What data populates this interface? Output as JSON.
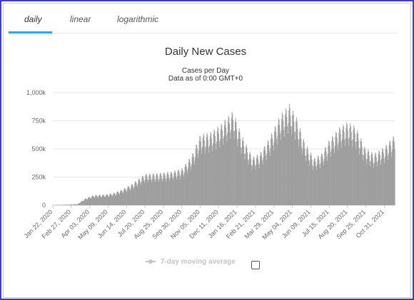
{
  "tabs": [
    {
      "label": "daily",
      "active": true
    },
    {
      "label": "linear",
      "active": false
    },
    {
      "label": "logarithmic",
      "active": false
    }
  ],
  "legend": {
    "label": "7-day moving average",
    "checked": false
  },
  "colors": {
    "bars": "#9e9e9e",
    "tab_accent": "#33a6e6",
    "frame": "#3b3fc4"
  },
  "chart_data": {
    "type": "bar",
    "title": "Daily New Cases",
    "subtitle": "Cases per Day",
    "subtitle2": "Data as of 0:00 GMT+0",
    "xlabel": "",
    "ylabel": "",
    "ylim": [
      0,
      1000000
    ],
    "y_ticks": [
      0,
      250000,
      500000,
      750000,
      1000000
    ],
    "y_tick_labels": [
      "0",
      "250k",
      "500k",
      "750k",
      "1,000k"
    ],
    "x_tick_labels": [
      "Jan 22, 2020",
      "Feb 27, 2020",
      "Apr 03, 2020",
      "May 09, 2020",
      "Jun 14, 2020",
      "Jul 20, 2020",
      "Aug 25, 2020",
      "Sep 30, 2020",
      "Nov 05, 2020",
      "Dec 11, 2020",
      "Jan 16, 2021",
      "Feb 21, 2021",
      "Mar 29, 2021",
      "May 04, 2021",
      "Jun 09, 2021",
      "Jul 15, 2021",
      "Aug 20, 2021",
      "Sep 25, 2021",
      "Oct 31, 2021"
    ],
    "x_start": "2020-01-22",
    "x_end": "2021-11-20",
    "grid": true,
    "series": [
      {
        "values_weekly_peaks": [
          [
            "2020-01-22",
            1000
          ],
          [
            "2020-02-12",
            4000
          ],
          [
            "2020-03-10",
            10000
          ],
          [
            "2020-03-25",
            60000
          ],
          [
            "2020-04-10",
            90000
          ],
          [
            "2020-05-01",
            95000
          ],
          [
            "2020-05-20",
            110000
          ],
          [
            "2020-06-05",
            140000
          ],
          [
            "2020-06-25",
            190000
          ],
          [
            "2020-07-20",
            280000
          ],
          [
            "2020-08-15",
            285000
          ],
          [
            "2020-09-10",
            300000
          ],
          [
            "2020-10-01",
            330000
          ],
          [
            "2020-10-20",
            450000
          ],
          [
            "2020-11-05",
            630000
          ],
          [
            "2020-11-25",
            650000
          ],
          [
            "2020-12-15",
            720000
          ],
          [
            "2021-01-08",
            840000
          ],
          [
            "2021-01-25",
            620000
          ],
          [
            "2021-02-15",
            430000
          ],
          [
            "2021-03-01",
            460000
          ],
          [
            "2021-03-20",
            600000
          ],
          [
            "2021-04-10",
            800000
          ],
          [
            "2021-04-28",
            900000
          ],
          [
            "2021-05-12",
            780000
          ],
          [
            "2021-05-28",
            560000
          ],
          [
            "2021-06-15",
            420000
          ],
          [
            "2021-06-30",
            460000
          ],
          [
            "2021-07-15",
            580000
          ],
          [
            "2021-08-05",
            700000
          ],
          [
            "2021-08-20",
            740000
          ],
          [
            "2021-09-05",
            700000
          ],
          [
            "2021-09-22",
            520000
          ],
          [
            "2021-10-10",
            460000
          ],
          [
            "2021-10-31",
            520000
          ],
          [
            "2021-11-20",
            630000
          ]
        ]
      }
    ]
  }
}
